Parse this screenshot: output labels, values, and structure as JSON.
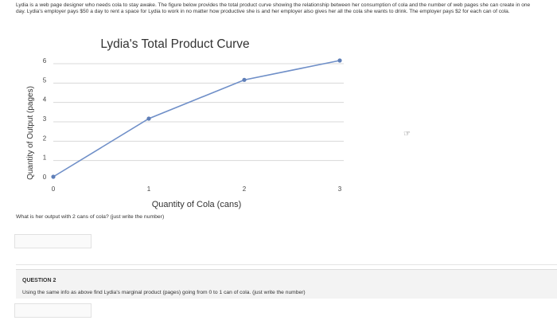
{
  "intro_text": "Lydia is a web page designer who needs cola to stay awake. The figure below provides the total product curve showing the relationship between her consumption of cola and the number of web pages she can create in one day. Lydia's employer pays $50 a day to rent a space for Lydia to work in no matter how productive she is and her employer also gives her all the cola she wants to drink. The employer pays $2 for each can of cola.",
  "question1": "What is her output with 2 cans of cola? (just write the number)",
  "question2": {
    "title": "QUESTION 2",
    "text": "Using the same info as above find Lydia's marginal product (pages) going from 0 to 1 can of cola. (just write the number)"
  },
  "side_icon": "cursor-hand-icon",
  "chart_data": {
    "type": "line",
    "title": "Lydia's Total Product Curve",
    "xlabel": "Quantity of Cola (cans)",
    "ylabel": "Quantity of Output (pages)",
    "x": [
      0,
      1,
      2,
      3
    ],
    "y": [
      0,
      3,
      5,
      6
    ],
    "xticks": [
      "0",
      "1",
      "2",
      "3"
    ],
    "yticks": [
      "0",
      "1",
      "2",
      "3",
      "4",
      "5",
      "6"
    ],
    "xlim": [
      0,
      3
    ],
    "ylim": [
      0,
      6
    ],
    "grid": true,
    "line_color": "#6f8fc8",
    "marker_color": "#5f7fb8"
  }
}
